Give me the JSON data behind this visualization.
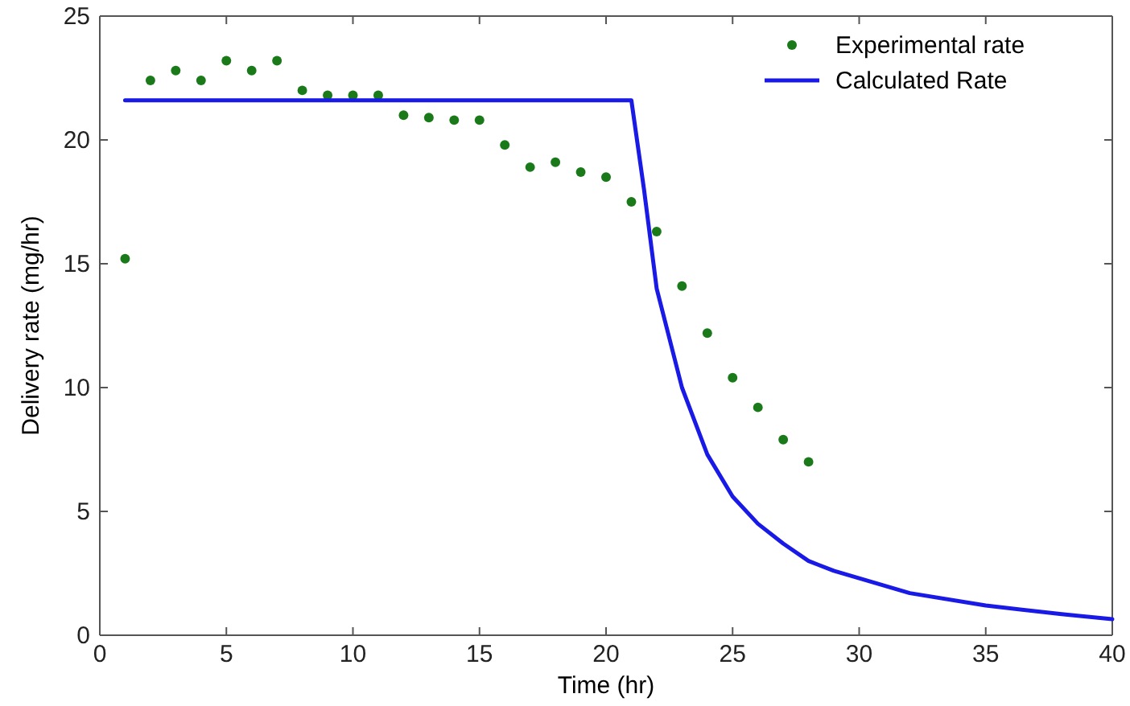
{
  "chart_data": {
    "type": "scatter",
    "xlabel": "Time (hr)",
    "ylabel": "Delivery rate (mg/hr)",
    "xlim": [
      0,
      40
    ],
    "ylim": [
      0,
      25
    ],
    "xticks": [
      0,
      5,
      10,
      15,
      20,
      25,
      30,
      35,
      40
    ],
    "yticks": [
      0,
      5,
      10,
      15,
      20,
      25
    ],
    "grid": false,
    "legend": "top right",
    "series": [
      {
        "name": "Experimental rate",
        "type": "scatter",
        "marker": "circle",
        "color": "#1a7a1a",
        "x": [
          1,
          2,
          3,
          4,
          5,
          6,
          7,
          8,
          9,
          10,
          11,
          12,
          13,
          14,
          15,
          16,
          17,
          18,
          19,
          20,
          21,
          22,
          23,
          24,
          25,
          26,
          27,
          28
        ],
        "values": [
          15.2,
          22.4,
          22.8,
          22.4,
          23.2,
          22.8,
          23.2,
          22.0,
          21.8,
          21.8,
          21.8,
          21.0,
          20.9,
          20.8,
          20.8,
          19.8,
          18.9,
          19.1,
          18.7,
          18.5,
          17.5,
          16.3,
          14.1,
          12.2,
          10.4,
          9.2,
          7.9,
          7.0
        ]
      },
      {
        "name": "Calculated Rate",
        "type": "line",
        "marker": "none",
        "line_style": "solid",
        "color": "#1a1ae6",
        "x": [
          1,
          21,
          21.5,
          22,
          23,
          24,
          25,
          26,
          27,
          28,
          29,
          30,
          32,
          35,
          38,
          40
        ],
        "values": [
          21.6,
          21.6,
          18,
          14,
          10,
          7.3,
          5.6,
          4.5,
          3.7,
          3.0,
          2.6,
          2.3,
          1.7,
          1.2,
          0.85,
          0.65
        ]
      }
    ]
  }
}
